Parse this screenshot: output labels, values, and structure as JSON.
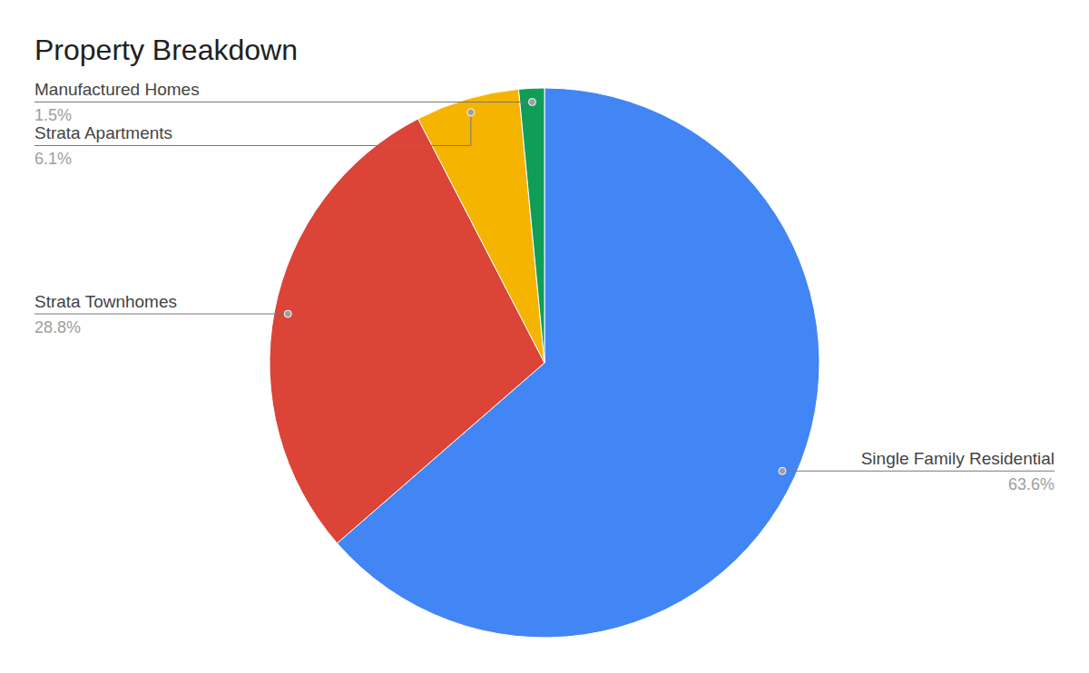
{
  "chart_data": {
    "type": "pie",
    "title": "Property Breakdown",
    "categories": [
      "Single Family Residential",
      "Strata Townhomes",
      "Strata Apartments",
      "Manufactured Homes"
    ],
    "values": [
      63.6,
      28.8,
      6.1,
      1.5
    ],
    "value_labels": [
      "63.6%",
      "28.8%",
      "6.1%",
      "1.5%"
    ],
    "colors": [
      "#4285f4",
      "#db4437",
      "#f4b400",
      "#0f9d58"
    ],
    "data_labels": true
  }
}
